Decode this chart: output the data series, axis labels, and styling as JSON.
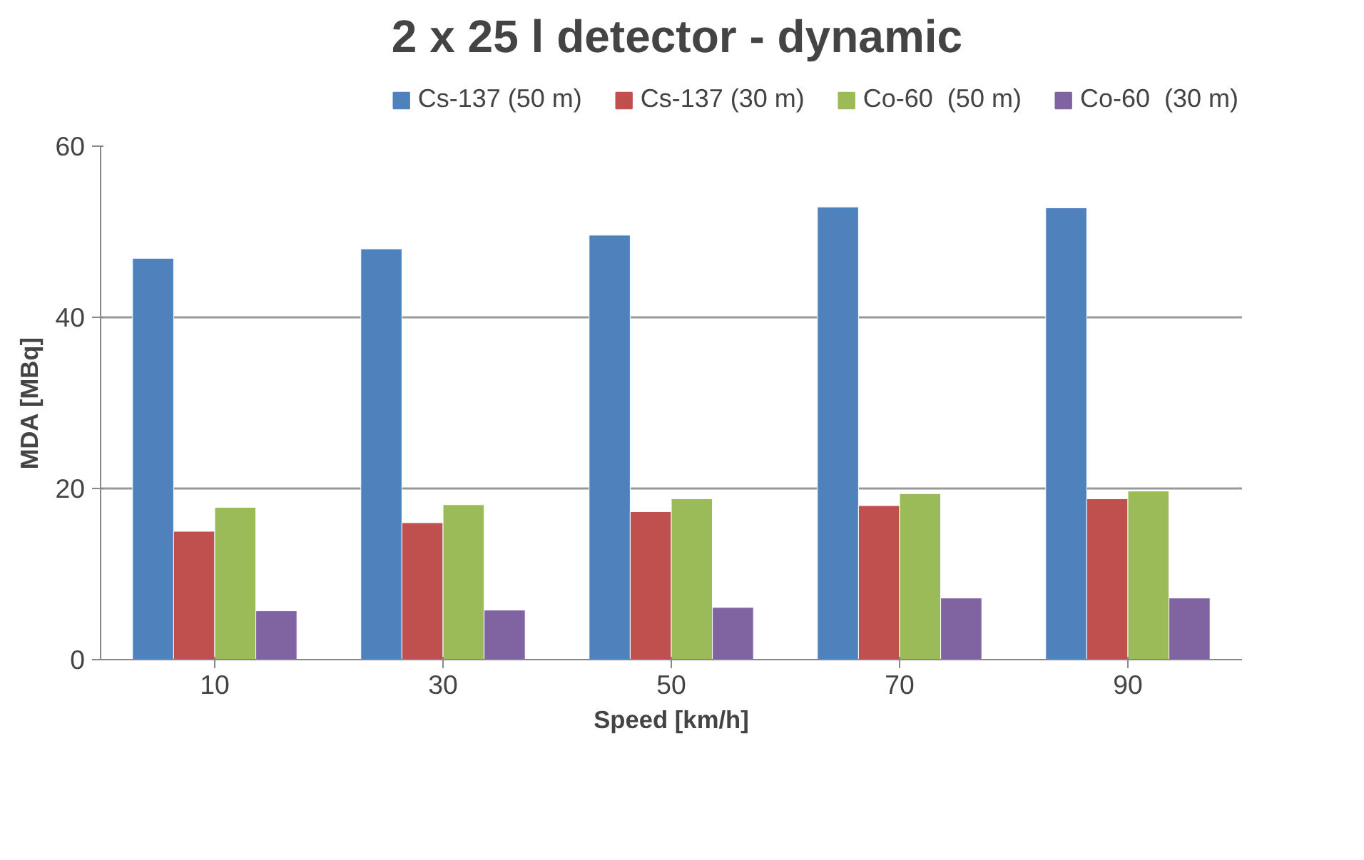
{
  "chart_data": {
    "type": "bar",
    "title": "2 x 25 l detector - dynamic",
    "xlabel": "Speed [km/h]",
    "ylabel": "MDA [MBq]",
    "categories": [
      "10",
      "30",
      "50",
      "70",
      "90"
    ],
    "series": [
      {
        "name": "Cs-137 (50 m)",
        "color": "#4f81bd",
        "values": [
          46.9,
          48.0,
          49.6,
          52.9,
          52.8
        ]
      },
      {
        "name": "Cs-137 (30 m)",
        "color": "#c0504d",
        "values": [
          15.0,
          16.0,
          17.3,
          18.0,
          18.8
        ]
      },
      {
        "name": "Co-60  (50 m)",
        "color": "#9bbb59",
        "values": [
          17.8,
          18.1,
          18.8,
          19.4,
          19.7
        ]
      },
      {
        "name": "Co-60  (30 m)",
        "color": "#8064a2",
        "values": [
          5.7,
          5.8,
          6.1,
          7.2,
          7.2
        ]
      }
    ],
    "ylim": [
      0,
      60
    ],
    "yticks": [
      0,
      20,
      40,
      60
    ],
    "grid": "y",
    "legend": "top"
  }
}
